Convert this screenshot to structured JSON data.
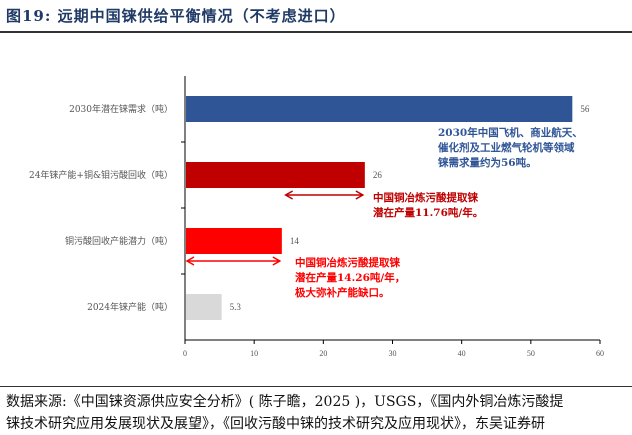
{
  "title": "图19:  远期中国铼供给平衡情况（不考虑进口）",
  "source_line1": "数据来源:《中国铼资源供应安全分析》( 陈子瞻，2025 )，USGS，《国内外铜冶炼污酸提",
  "source_line2": "铼技术研究应用发展现状及展望》，《回收污酸中铼的技术研究及应用现状》，东吴证券研",
  "chart_data": {
    "type": "bar",
    "orientation": "horizontal",
    "categories": [
      "2030年潜在铼需求（吨）",
      "24年铼产能+铜&钼污酸回收（吨）",
      "铜污酸回收产能潜力（吨）",
      "2024年铼产能（吨）"
    ],
    "values": [
      56,
      26,
      14,
      5.3
    ],
    "value_labels": [
      "56",
      "26",
      "14",
      "5.3"
    ],
    "colors": [
      "#2f5597",
      "#c00000",
      "#ff0000",
      "#d9d9d9"
    ],
    "xlim": [
      0,
      60
    ],
    "xticks": [
      0,
      10,
      20,
      30,
      40,
      50,
      60
    ],
    "arrows": [
      {
        "from": 14.26,
        "to": 26,
        "row": 1,
        "color": "#c00000"
      },
      {
        "from": 0,
        "to": 14,
        "row": 2,
        "color": "#ff0000"
      }
    ],
    "annotations": [
      {
        "lines": [
          "2030年中国飞机、商业航天、",
          "催化剂及工业燃气轮机等领域",
          "铼需求量约为56吨。"
        ],
        "color": "#2f5597"
      },
      {
        "lines": [
          "中国铜冶炼污酸提取铼",
          "潜在产量11.76吨/年。"
        ],
        "color": "#c00000"
      },
      {
        "lines": [
          "中国铜冶炼污酸提取铼",
          "潜在产量14.26吨/年，",
          "极大弥补产能缺口。"
        ],
        "color": "#ff0000"
      }
    ]
  }
}
